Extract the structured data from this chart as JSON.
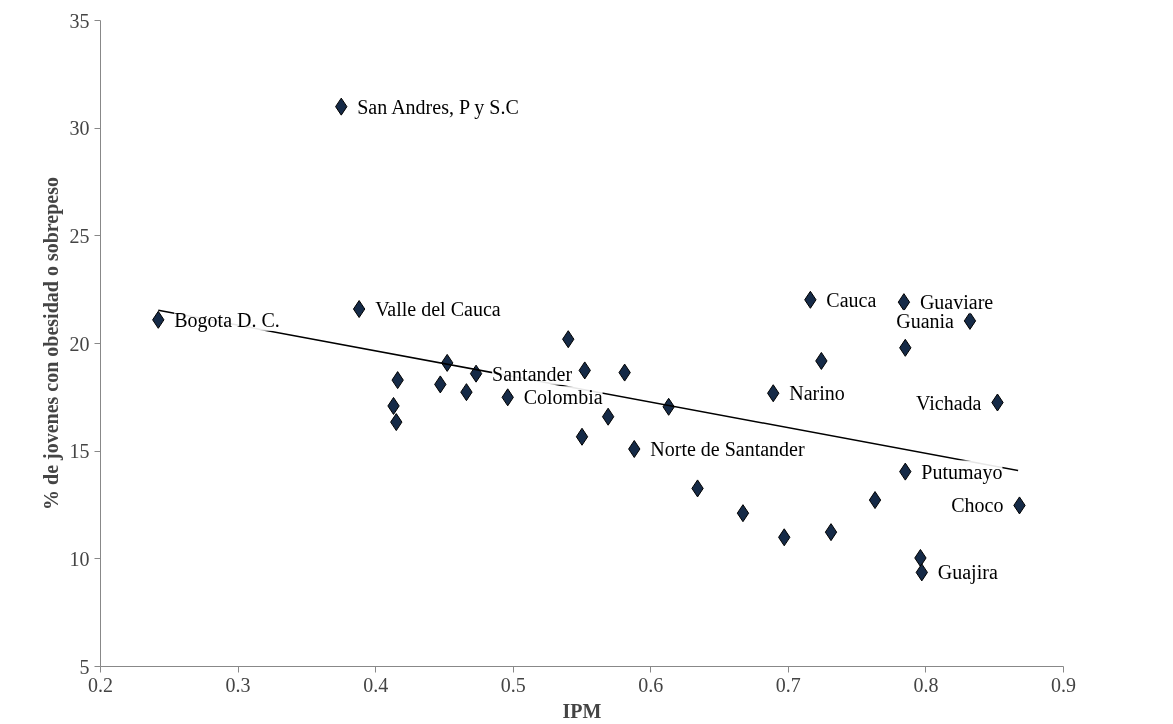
{
  "chart_data": {
    "type": "scatter",
    "xlabel": "IPM",
    "ylabel": "% de jovenes con obesidad o sobrepeso",
    "xlim": [
      0.2,
      0.9
    ],
    "xticks": [
      0.2,
      0.3,
      0.4,
      0.5,
      0.6,
      0.7,
      0.8,
      0.9
    ],
    "ylim": [
      5,
      35
    ],
    "yticks": [
      5,
      10,
      15,
      20,
      25,
      30,
      35
    ],
    "grid": false,
    "marker": "diamond",
    "series": [
      {
        "color": "#152a47",
        "x": [
          0.375,
          0.242,
          0.388,
          0.416,
          0.413,
          0.415,
          0.452,
          0.447,
          0.473,
          0.466,
          0.496,
          0.54,
          0.552,
          0.581,
          0.569,
          0.55,
          0.588,
          0.613,
          0.716,
          0.784,
          0.832,
          0.785,
          0.724,
          0.689,
          0.852,
          0.785,
          0.634,
          0.667,
          0.697,
          0.731,
          0.763,
          0.868,
          0.796,
          0.797
        ],
        "values": [
          31.0,
          21.1,
          21.6,
          18.3,
          17.1,
          16.35,
          19.1,
          18.1,
          18.6,
          17.74,
          17.5,
          20.2,
          18.75,
          18.65,
          16.6,
          15.67,
          15.1,
          17.06,
          22.03,
          21.92,
          21.05,
          19.8,
          19.19,
          17.69,
          17.26,
          14.05,
          13.27,
          12.12,
          11.0,
          11.24,
          12.73,
          12.48,
          10.04,
          9.37
        ]
      },
      {
        "type": "line",
        "color": "#000000",
        "marker": "none",
        "line_style": "solid",
        "x": [
          0.242,
          0.867
        ],
        "values": [
          21.54,
          14.1
        ]
      }
    ],
    "annotations": [
      {
        "text": "San Andres, P y S.C",
        "x": 0.375,
        "y": 31.0
      },
      {
        "text": "Bogota D. C.",
        "x": 0.242,
        "y": 21.1
      },
      {
        "text": "Valle del Cauca",
        "x": 0.388,
        "y": 21.6
      },
      {
        "text": "Santander",
        "x": 0.473,
        "y": 18.6
      },
      {
        "text": "Colombia",
        "x": 0.496,
        "y": 17.5
      },
      {
        "text": "Norte de Santander",
        "x": 0.588,
        "y": 15.1
      },
      {
        "text": "Cauca",
        "x": 0.716,
        "y": 22.03
      },
      {
        "text": "Guaviare",
        "x": 0.784,
        "y": 21.92
      },
      {
        "text": "Guania",
        "x": 0.832,
        "y": 21.05
      },
      {
        "text": "Narino",
        "x": 0.689,
        "y": 17.69
      },
      {
        "text": "Vichada",
        "x": 0.852,
        "y": 17.26
      },
      {
        "text": "Putumayo",
        "x": 0.785,
        "y": 14.05
      },
      {
        "text": "Choco",
        "x": 0.868,
        "y": 12.48
      },
      {
        "text": "Guajira",
        "x": 0.797,
        "y": 9.37
      }
    ]
  }
}
